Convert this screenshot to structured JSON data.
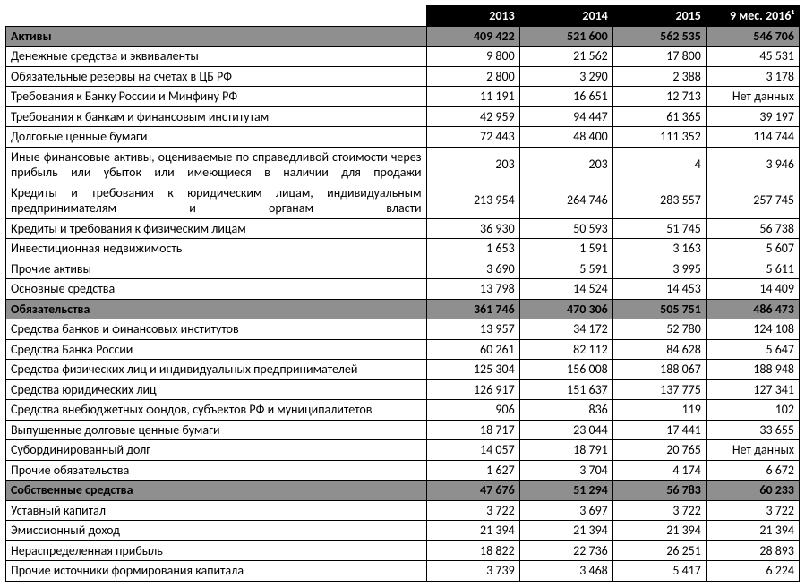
{
  "columns": [
    "2013",
    "2014",
    "2015",
    "9 мес. 2016¹"
  ],
  "rows": [
    {
      "section": true,
      "label": "Активы",
      "vals": [
        "409 422",
        "521 600",
        "562 535",
        "546 706"
      ]
    },
    {
      "section": false,
      "label": "Денежные средства и эквиваленты",
      "vals": [
        "9 800",
        "21 562",
        "17 800",
        "45 531"
      ]
    },
    {
      "section": false,
      "label": "Обязательные резервы на счетах в ЦБ РФ",
      "vals": [
        "2 800",
        "3 290",
        "2 388",
        "3 178"
      ]
    },
    {
      "section": false,
      "label": "Требования к Банку России и Минфину РФ",
      "vals": [
        "11 191",
        "16 651",
        "12 713",
        "Нет данных"
      ]
    },
    {
      "section": false,
      "label": "Требования к банкам и финансовым институтам",
      "vals": [
        "42 959",
        "94 447",
        "61 365",
        "39 197"
      ]
    },
    {
      "section": false,
      "label": "Долговые ценные бумаги",
      "vals": [
        "72 443",
        "48 400",
        "111 352",
        "114 744"
      ]
    },
    {
      "section": false,
      "justify": true,
      "label": "Иные финансовые активы, оцениваемые по справедливой стоимости через прибыль или убыток или имеющиеся в наличии для продажи",
      "vals": [
        "203",
        "203",
        "4",
        "3 946"
      ]
    },
    {
      "section": false,
      "justify": true,
      "label": "Кредиты и требования к юридическим лицам, индивидуальным предпринимателям и органам власти",
      "vals": [
        "213 954",
        "264 746",
        "283 557",
        "257 745"
      ]
    },
    {
      "section": false,
      "label": "Кредиты и требования к физическим лицам",
      "vals": [
        "36 930",
        "50 593",
        "51 745",
        "56 738"
      ]
    },
    {
      "section": false,
      "label": "Инвестиционная недвижимость",
      "vals": [
        "1 653",
        "1 591",
        "3 163",
        "5 607"
      ]
    },
    {
      "section": false,
      "label": "Прочие активы",
      "vals": [
        "3 690",
        "5 591",
        "3 995",
        "5 611"
      ]
    },
    {
      "section": false,
      "label": "Основные средства",
      "vals": [
        "13 798",
        "14 524",
        "14 453",
        "14 409"
      ]
    },
    {
      "section": true,
      "label": "Обязательства",
      "vals": [
        "361 746",
        "470 306",
        "505 751",
        "486 473"
      ]
    },
    {
      "section": false,
      "label": "Средства банков и финансовых институтов",
      "vals": [
        "13 957",
        "34 172",
        "52 780",
        "124 108"
      ]
    },
    {
      "section": false,
      "label": "Средства Банка России",
      "vals": [
        "60 261",
        "82 112",
        "84 628",
        "5 647"
      ]
    },
    {
      "section": false,
      "label": "Средства физических лиц и индивидуальных предпринимателей",
      "vals": [
        "125 304",
        "156 008",
        "188 067",
        "188 948"
      ]
    },
    {
      "section": false,
      "label": "Средства юридических лиц",
      "vals": [
        "126 917",
        "151 637",
        "137 775",
        "127 341"
      ]
    },
    {
      "section": false,
      "label": "Средства внебюджетных фондов, субъектов РФ и муниципалитетов",
      "vals": [
        "906",
        "836",
        "119",
        "102"
      ]
    },
    {
      "section": false,
      "label": "Выпущенные долговые ценные бумаги",
      "vals": [
        "18 717",
        "23 044",
        "17 441",
        "33 655"
      ]
    },
    {
      "section": false,
      "label": "Субординированный долг",
      "vals": [
        "14 057",
        "18 791",
        "20 765",
        "Нет данных"
      ]
    },
    {
      "section": false,
      "label": "Прочие обязательства",
      "vals": [
        "1 627",
        "3 704",
        "4 174",
        "6 672"
      ]
    },
    {
      "section": true,
      "label": "Собственные средства",
      "vals": [
        "47 676",
        "51 294",
        "56 783",
        "60 233"
      ]
    },
    {
      "section": false,
      "label": "Уставный капитал",
      "vals": [
        "3 722",
        "3 697",
        "3 722",
        "3 722"
      ]
    },
    {
      "section": false,
      "label": "Эмиссионный доход",
      "vals": [
        "21 394",
        "21 394",
        "21 394",
        "21 394"
      ]
    },
    {
      "section": false,
      "label": "Нераспределенная прибыль",
      "vals": [
        "18 822",
        "22 736",
        "26 251",
        "28 893"
      ]
    },
    {
      "section": false,
      "label": "Прочие источники формирования капитала",
      "vals": [
        "3 739",
        "3 468",
        "5 417",
        "6 224"
      ]
    }
  ]
}
